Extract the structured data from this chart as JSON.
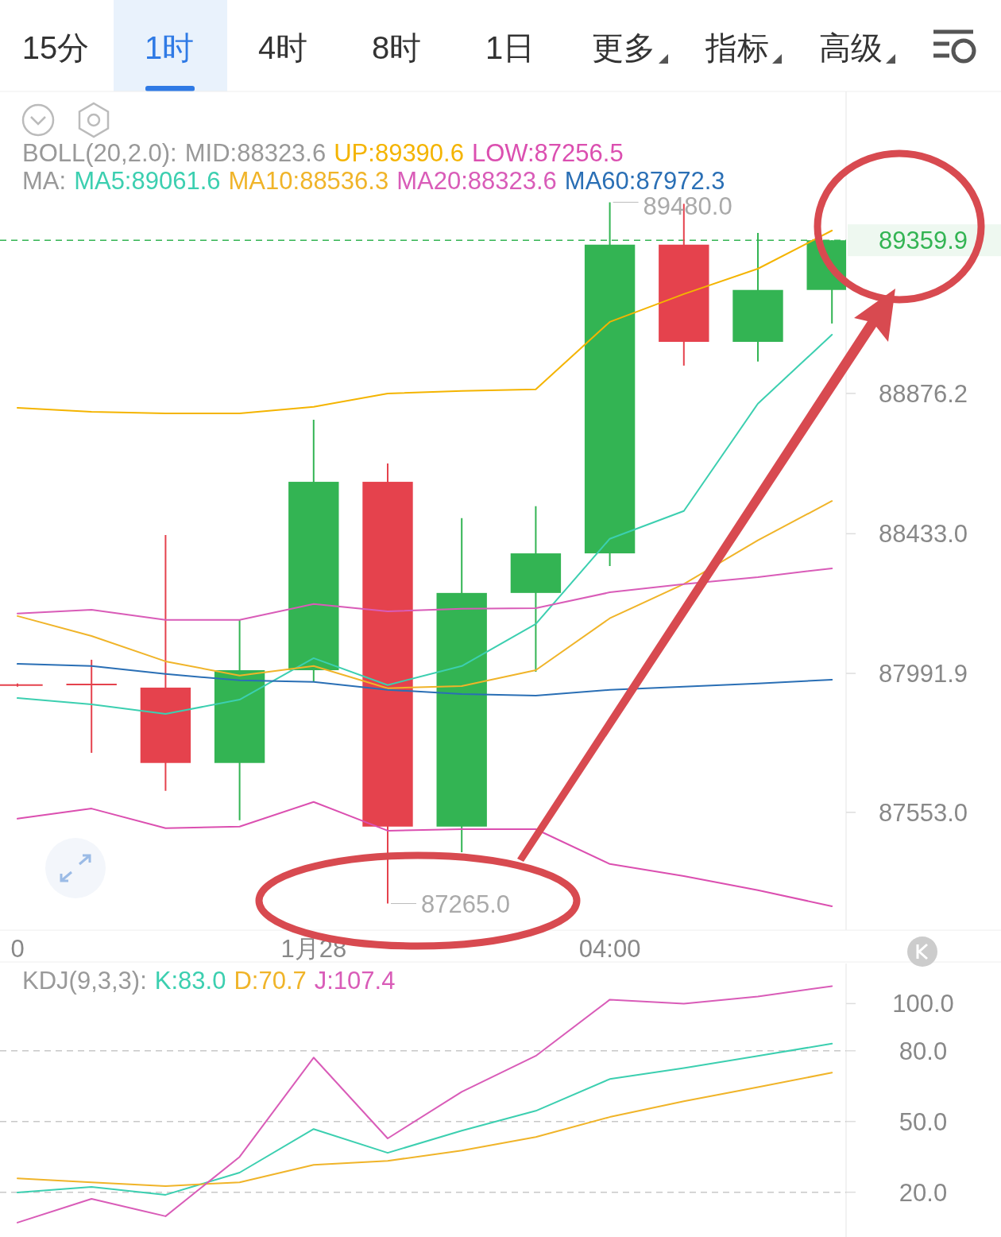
{
  "chart_data": [
    {
      "type": "other",
      "annotations": [
        "15分",
        "1时",
        "4时",
        "8时",
        "1日",
        "更多",
        "指标",
        "高级"
      ]
    },
    {
      "type": "candlestick",
      "legend": "top",
      "categories": [
        "0",
        null,
        null,
        null,
        "1月28",
        null,
        null,
        null,
        "04:00",
        null,
        null,
        null
      ],
      "ohlc": [
        [
          87955,
          87960,
          87950,
          87955
        ],
        [
          87957,
          88035,
          87741,
          87953
        ],
        [
          87947,
          88429,
          87621,
          87709
        ],
        [
          87709,
          88161,
          87528,
          88002
        ],
        [
          88002,
          88793,
          87965,
          88597
        ],
        [
          88597,
          88655,
          87265.0,
          87508
        ],
        [
          87508,
          88482,
          87427,
          88246
        ],
        [
          88246,
          88520,
          87997,
          88371
        ],
        [
          88371,
          89480.0,
          88331,
          89346
        ],
        [
          89346,
          89475,
          88964,
          89039
        ],
        [
          89039,
          89383,
          88977,
          89203
        ],
        [
          89203,
          89360,
          89097,
          89359.9
        ]
      ],
      "colors": [
        "#e5424d",
        "#e5424d",
        "#e5424d",
        "#33b453",
        "#33b453",
        "#e5424d",
        "#33b453",
        "#33b453",
        "#33b453",
        "#e5424d",
        "#33b453",
        "#33b453"
      ],
      "series": [
        {
          "type": "line",
          "name": "UP:89390.6",
          "color": "#f4b400",
          "values": [
            88831,
            88818,
            88813,
            88813,
            88834,
            88876,
            88884,
            88889,
            89102,
            89190,
            89270,
            89390.6
          ]
        },
        {
          "type": "line",
          "name": "LOW:87256.5",
          "color": "#db4fb0",
          "values": [
            87533,
            87565,
            87503,
            87508,
            87586,
            87495,
            87500,
            87500,
            87390,
            87352,
            87307,
            87256.5
          ]
        },
        {
          "type": "line",
          "name": "MA5:89061.6",
          "color": "#3ccfb0",
          "values": [
            87914,
            87894,
            87864,
            87909,
            88040,
            87955,
            88015,
            88148,
            88417,
            88505,
            88844,
            89061.6
          ]
        },
        {
          "type": "line",
          "name": "MA10:88536.3",
          "color": "#f0b429",
          "values": [
            88173,
            88110,
            88030,
            87985,
            88015,
            87945,
            87952,
            88002,
            88166,
            88274,
            88412,
            88536.3
          ]
        },
        {
          "type": "line",
          "name": "MA20:88323.6",
          "color": "#d95cb8",
          "values": [
            88181,
            88193,
            88161,
            88161,
            88211,
            88188,
            88196,
            88198,
            88248,
            88274,
            88296,
            88323.6
          ]
        },
        {
          "type": "line",
          "name": "MA60:87972.3",
          "color": "#2a6fb5",
          "values": [
            88022,
            88015,
            87990,
            87970,
            87965,
            87940,
            87927,
            87922,
            87940,
            87950,
            87960,
            87972.3
          ]
        }
      ],
      "ylim": [
        87181,
        89830
      ],
      "yticks": [
        88876.2,
        {
          "value": 88433,
          "label": "88433.0"
        },
        87991.9,
        {
          "value": 87553,
          "label": "87553.0"
        }
      ],
      "ref_lines": [
        {
          "axis": "y",
          "value": 89359.9,
          "label": "89359.9",
          "color": "#33b453",
          "line_style": "dashed"
        }
      ],
      "annotations": [
        "BOLL(20,2.0):",
        "MID:88323.6",
        "MA:",
        "89480.0",
        "87265.0"
      ]
    },
    {
      "type": "line",
      "legend": "top left",
      "tick_labels": "y",
      "categories": [
        null,
        null,
        null,
        null,
        null,
        null,
        null,
        null,
        null,
        null,
        null,
        null
      ],
      "series": [
        {
          "name": "K:83.0",
          "color": "#3ccfb0",
          "values": [
            19.9,
            22.2,
            18.9,
            28.3,
            46.8,
            36.7,
            46.1,
            54.5,
            68.0,
            72.7,
            77.8,
            83.0
          ]
        },
        {
          "name": "D:70.7",
          "color": "#f0b429",
          "values": [
            25.9,
            24.2,
            22.6,
            24.2,
            31.6,
            33.3,
            37.7,
            43.4,
            51.9,
            58.6,
            64.6,
            70.7
          ]
        },
        {
          "name": "J:107.4",
          "color": "#d95cb8",
          "values": [
            7.1,
            17.2,
            9.8,
            35.0,
            77.1,
            42.8,
            62.6,
            77.8,
            101.7,
            100.0,
            103.0,
            107.4
          ]
        }
      ],
      "ylim": [
        1,
        117
      ],
      "yticks": [
        {
          "value": 100,
          "label": "100.0"
        },
        {
          "value": 80,
          "label": "80.0"
        },
        {
          "value": 50,
          "label": "50.0"
        },
        {
          "value": 20,
          "label": "20.0"
        }
      ],
      "ref_lines": [
        {
          "axis": "y",
          "value": 80,
          "line_style": "dashed"
        },
        {
          "axis": "y",
          "value": 50,
          "line_style": "dashed"
        },
        {
          "axis": "y",
          "value": 20,
          "line_style": "dashed"
        }
      ],
      "annotations": [
        "KDJ(9,3,3):"
      ]
    }
  ]
}
